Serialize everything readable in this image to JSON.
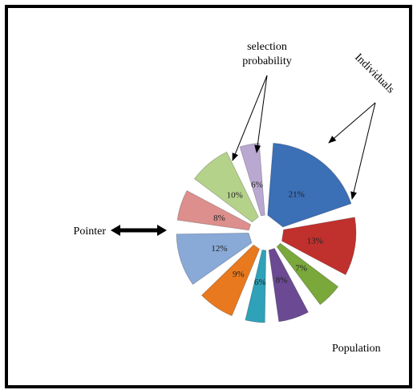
{
  "colors": {
    "frame": "#000000",
    "background": "#ffffff"
  },
  "annotations": {
    "selection_line1": "selection",
    "selection_line2": "probability",
    "individuals": "Individuals",
    "pointer": "Pointer",
    "population": "Population"
  },
  "chart_data": {
    "type": "pie",
    "exploded": true,
    "slices": [
      {
        "label": "21%",
        "value": 21,
        "color": "#3b6fb6"
      },
      {
        "label": "13%",
        "value": 13,
        "color": "#c0302d"
      },
      {
        "label": "7%",
        "value": 7,
        "color": "#7aa83b"
      },
      {
        "label": "8%",
        "value": 8,
        "color": "#6b4a93"
      },
      {
        "label": "6%",
        "value": 6,
        "color": "#2fa1b8"
      },
      {
        "label": "9%",
        "value": 9,
        "color": "#e8791e"
      },
      {
        "label": "12%",
        "value": 12,
        "color": "#89a9d6"
      },
      {
        "label": "8%",
        "value": 8,
        "color": "#dc8f8d"
      },
      {
        "label": "10%",
        "value": 10,
        "color": "#b5d28b"
      },
      {
        "label": "6%",
        "value": 6,
        "color": "#b9a8d0"
      }
    ]
  }
}
